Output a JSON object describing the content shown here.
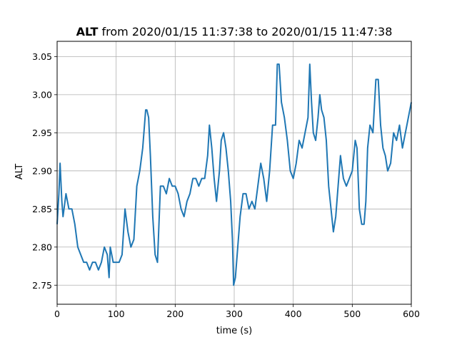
{
  "chart_data": {
    "type": "line",
    "title_bold": "ALT",
    "title_rest": " from 2020/01/15 11:37:38 to 2020/01/15 11:47:38",
    "xlabel": "time (s)",
    "ylabel": "ALT",
    "xlim": [
      0,
      600
    ],
    "ylim": [
      2.725,
      3.07
    ],
    "xticks": [
      0,
      100,
      200,
      300,
      400,
      500,
      600
    ],
    "yticks": [
      2.75,
      2.8,
      2.85,
      2.9,
      2.95,
      3.0,
      3.05
    ],
    "xtick_labels": [
      "0",
      "100",
      "200",
      "300",
      "400",
      "500",
      "600"
    ],
    "ytick_labels": [
      "2.75",
      "2.80",
      "2.85",
      "2.90",
      "2.95",
      "3.00",
      "3.05"
    ],
    "grid": true,
    "line_color": "#1f77b4",
    "series": [
      {
        "x": [
          0,
          3,
          5,
          8,
          10,
          15,
          20,
          25,
          30,
          35,
          40,
          45,
          50,
          55,
          60,
          65,
          70,
          75,
          80,
          85,
          88,
          90,
          95,
          100,
          105,
          110,
          115,
          120,
          125,
          130,
          135,
          140,
          145,
          150,
          152,
          155,
          158,
          162,
          166,
          170,
          173,
          175,
          178,
          180,
          185,
          190,
          195,
          200,
          205,
          210,
          215,
          220,
          225,
          230,
          235,
          240,
          245,
          250,
          255,
          258,
          262,
          266,
          270,
          275,
          278,
          282,
          286,
          290,
          294,
          297,
          299,
          302,
          306,
          310,
          315,
          320,
          325,
          330,
          335,
          340,
          345,
          350,
          355,
          360,
          365,
          370,
          373,
          376,
          380,
          385,
          390,
          395,
          400,
          405,
          410,
          415,
          420,
          425,
          428,
          431,
          434,
          438,
          442,
          445,
          448,
          452,
          456,
          460,
          464,
          468,
          472,
          476,
          480,
          485,
          490,
          495,
          500,
          505,
          508,
          512,
          516,
          520,
          523,
          526,
          530,
          535,
          540,
          544,
          548,
          552,
          556,
          560,
          565,
          570,
          575,
          580,
          585,
          590,
          595,
          600
        ],
        "y": [
          2.83,
          2.87,
          2.91,
          2.86,
          2.84,
          2.87,
          2.85,
          2.85,
          2.83,
          2.8,
          2.79,
          2.78,
          2.78,
          2.77,
          2.78,
          2.78,
          2.77,
          2.78,
          2.8,
          2.79,
          2.76,
          2.8,
          2.78,
          2.78,
          2.78,
          2.79,
          2.85,
          2.82,
          2.8,
          2.81,
          2.88,
          2.9,
          2.93,
          2.98,
          2.98,
          2.97,
          2.92,
          2.84,
          2.79,
          2.78,
          2.84,
          2.88,
          2.88,
          2.88,
          2.87,
          2.89,
          2.88,
          2.88,
          2.87,
          2.85,
          2.84,
          2.86,
          2.87,
          2.89,
          2.89,
          2.88,
          2.89,
          2.89,
          2.92,
          2.96,
          2.93,
          2.89,
          2.86,
          2.9,
          2.94,
          2.95,
          2.93,
          2.9,
          2.86,
          2.81,
          2.75,
          2.76,
          2.8,
          2.84,
          2.87,
          2.87,
          2.85,
          2.86,
          2.85,
          2.88,
          2.91,
          2.89,
          2.86,
          2.9,
          2.96,
          2.96,
          3.04,
          3.04,
          2.99,
          2.97,
          2.94,
          2.9,
          2.89,
          2.91,
          2.94,
          2.93,
          2.95,
          2.97,
          3.04,
          2.99,
          2.95,
          2.94,
          2.97,
          3.0,
          2.98,
          2.97,
          2.94,
          2.88,
          2.85,
          2.82,
          2.84,
          2.88,
          2.92,
          2.89,
          2.88,
          2.89,
          2.9,
          2.94,
          2.93,
          2.85,
          2.83,
          2.83,
          2.86,
          2.93,
          2.96,
          2.95,
          3.02,
          3.02,
          2.96,
          2.93,
          2.92,
          2.9,
          2.91,
          2.95,
          2.94,
          2.96,
          2.93,
          2.95,
          2.97,
          2.99
        ]
      }
    ]
  }
}
